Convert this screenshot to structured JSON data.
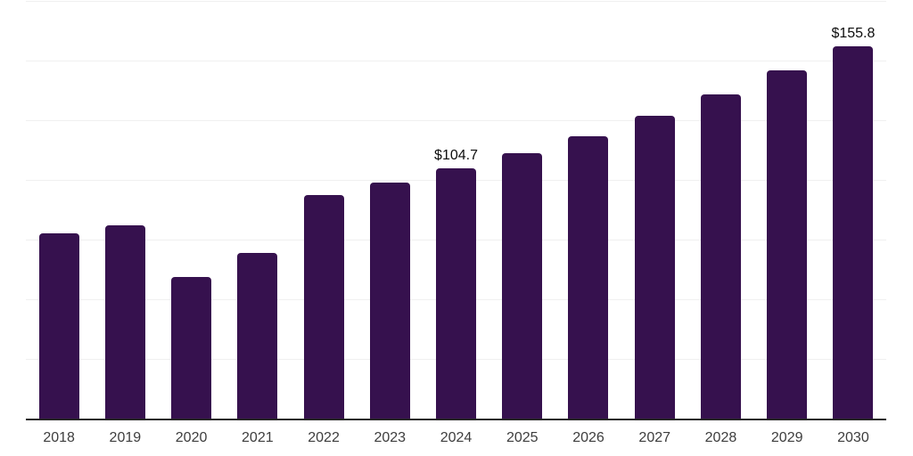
{
  "chart": {
    "background_color": "#ffffff",
    "bar_color": "#36114e",
    "grid_color": "#f0f0f0",
    "axis_color": "#262626",
    "tick_label_color": "#3d3d3d",
    "data_label_color": "#0d0d0d"
  },
  "chart_data": {
    "type": "bar",
    "title": "",
    "categories": [
      "2018",
      "2019",
      "2020",
      "2021",
      "2022",
      "2023",
      "2024",
      "2025",
      "2026",
      "2027",
      "2028",
      "2029",
      "2030"
    ],
    "values": [
      77.6,
      81.0,
      59.4,
      69.4,
      93.6,
      98.8,
      104.7,
      111.3,
      118.4,
      126.7,
      135.7,
      146.0,
      155.8
    ],
    "data_labels": [
      "",
      "",
      "",
      "",
      "",
      "",
      "$104.7",
      "",
      "",
      "",
      "",
      "",
      "$155.8"
    ],
    "xlabel": "",
    "ylabel": "",
    "ylim": [
      0,
      175
    ],
    "grid_step": 25,
    "grid": "horizontal only",
    "y_tick_labels_visible": false,
    "legend": "none",
    "bar_corner_radius": "rounded top"
  }
}
